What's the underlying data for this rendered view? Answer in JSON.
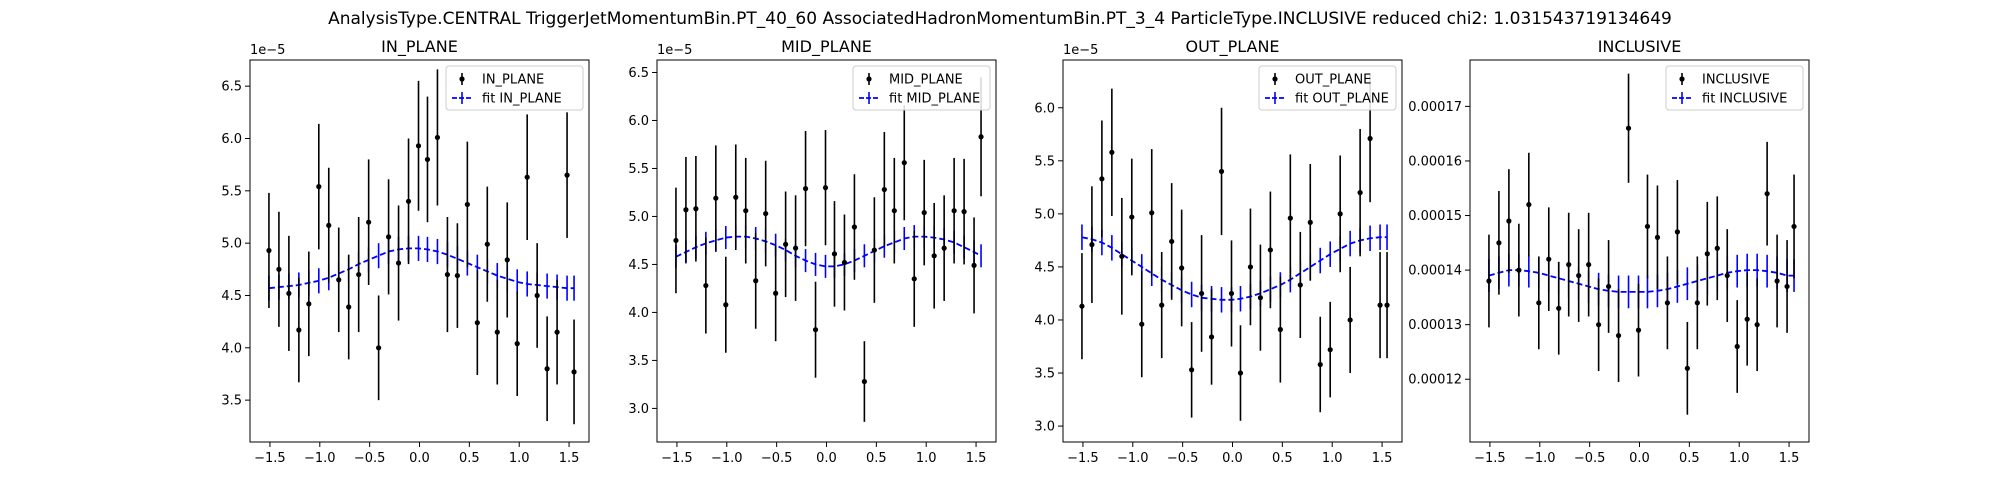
{
  "figure": {
    "suptitle": "AnalysisType.CENTRAL TriggerJetMomentumBin.PT_40_60 AssociatedHadronMomentumBin.PT_3_4 ParticleType.INCLUSIVE reduced chi2: 1.031543719134649"
  },
  "colors": {
    "data": "#000000",
    "fit": "#0000ff",
    "axes": "#000000",
    "background": "#ffffff"
  },
  "chart_data": [
    {
      "type": "scatter",
      "title": "IN_PLANE",
      "xlabel": "",
      "ylabel": "",
      "offset_text": "1e−5",
      "xlim": [
        -1.7,
        1.7
      ],
      "ylim": [
        3.1,
        6.75
      ],
      "xticks": [
        -1.5,
        -1.0,
        -0.5,
        0.0,
        0.5,
        1.0,
        1.5
      ],
      "xtick_labels": [
        "−1.5",
        "−1.0",
        "−0.5",
        "0.0",
        "0.5",
        "1.0",
        "1.5"
      ],
      "yticks": [
        3.5,
        4.0,
        4.5,
        5.0,
        5.5,
        6.0,
        6.5
      ],
      "ytick_labels": [
        "3.5",
        "4.0",
        "4.5",
        "5.0",
        "5.5",
        "6.0",
        "6.5"
      ],
      "legend": {
        "placement": "upper right",
        "entries": [
          "IN_PLANE",
          "fit IN_PLANE"
        ]
      },
      "x": [
        -1.51,
        -1.41,
        -1.31,
        -1.21,
        -1.11,
        -1.01,
        -0.91,
        -0.81,
        -0.71,
        -0.61,
        -0.51,
        -0.41,
        -0.31,
        -0.21,
        -0.11,
        -0.01,
        0.08,
        0.18,
        0.28,
        0.38,
        0.48,
        0.58,
        0.68,
        0.78,
        0.88,
        0.98,
        1.08,
        1.18,
        1.28,
        1.38,
        1.48,
        1.55
      ],
      "series": [
        {
          "name": "IN_PLANE",
          "y": [
            4.93,
            4.75,
            4.52,
            4.17,
            4.42,
            5.54,
            5.17,
            4.65,
            4.39,
            4.7,
            5.2,
            4.0,
            5.06,
            4.81,
            5.4,
            5.93,
            5.8,
            6.01,
            4.7,
            4.69,
            5.37,
            4.24,
            4.99,
            4.15,
            4.84,
            4.04,
            5.63,
            4.5,
            3.8,
            4.15,
            5.65,
            3.77
          ],
          "yerr": [
            0.55,
            0.55,
            0.55,
            0.5,
            0.5,
            0.6,
            0.55,
            0.5,
            0.5,
            0.55,
            0.6,
            0.5,
            0.55,
            0.55,
            0.6,
            0.62,
            0.6,
            0.65,
            0.55,
            0.5,
            0.6,
            0.5,
            0.55,
            0.5,
            0.55,
            0.5,
            0.6,
            0.5,
            0.5,
            0.5,
            0.6,
            0.5
          ]
        },
        {
          "name": "fit IN_PLANE",
          "y": [
            4.57,
            4.58,
            4.59,
            4.6,
            4.62,
            4.64,
            4.67,
            4.71,
            4.75,
            4.8,
            4.84,
            4.88,
            4.92,
            4.94,
            4.95,
            4.95,
            4.94,
            4.92,
            4.89,
            4.85,
            4.81,
            4.77,
            4.73,
            4.69,
            4.66,
            4.63,
            4.61,
            4.6,
            4.59,
            4.58,
            4.57,
            4.57
          ],
          "yerr": [
            0.12,
            0.12,
            0.12,
            0.12,
            0.12,
            0.12,
            0.12,
            0.12,
            0.12,
            0.12,
            0.12,
            0.12,
            0.12,
            0.12,
            0.12,
            0.12,
            0.12,
            0.12,
            0.12,
            0.12,
            0.12,
            0.12,
            0.12,
            0.12,
            0.12,
            0.12,
            0.12,
            0.12,
            0.12,
            0.12,
            0.12,
            0.12
          ]
        }
      ]
    },
    {
      "type": "scatter",
      "title": "MID_PLANE",
      "xlabel": "",
      "ylabel": "",
      "offset_text": "1e−5",
      "xlim": [
        -1.7,
        1.7
      ],
      "ylim": [
        2.65,
        6.63
      ],
      "xticks": [
        -1.5,
        -1.0,
        -0.5,
        0.0,
        0.5,
        1.0,
        1.5
      ],
      "xtick_labels": [
        "−1.5",
        "−1.0",
        "−0.5",
        "0.0",
        "0.5",
        "1.0",
        "1.5"
      ],
      "yticks": [
        3.0,
        3.5,
        4.0,
        4.5,
        5.0,
        5.5,
        6.0,
        6.5
      ],
      "ytick_labels": [
        "3.0",
        "3.5",
        "4.0",
        "4.5",
        "5.0",
        "5.5",
        "6.0",
        "6.5"
      ],
      "legend": {
        "placement": "upper right",
        "entries": [
          "MID_PLANE",
          "fit MID_PLANE"
        ]
      },
      "x": [
        -1.51,
        -1.41,
        -1.31,
        -1.21,
        -1.11,
        -1.01,
        -0.91,
        -0.81,
        -0.71,
        -0.61,
        -0.51,
        -0.41,
        -0.31,
        -0.21,
        -0.11,
        -0.01,
        0.08,
        0.18,
        0.28,
        0.38,
        0.48,
        0.58,
        0.68,
        0.78,
        0.88,
        0.98,
        1.08,
        1.18,
        1.28,
        1.38,
        1.48,
        1.55
      ],
      "series": [
        {
          "name": "MID_PLANE",
          "y": [
            4.75,
            5.07,
            5.08,
            4.28,
            5.19,
            4.08,
            5.2,
            5.06,
            4.33,
            5.03,
            4.2,
            4.71,
            4.67,
            5.29,
            3.82,
            5.3,
            4.61,
            4.52,
            4.89,
            3.28,
            4.65,
            5.28,
            5.06,
            5.56,
            4.35,
            5.04,
            4.59,
            4.67,
            5.06,
            5.05,
            4.49,
            5.83
          ],
          "yerr": [
            0.55,
            0.55,
            0.55,
            0.5,
            0.55,
            0.5,
            0.55,
            0.55,
            0.5,
            0.55,
            0.5,
            0.55,
            0.55,
            0.6,
            0.5,
            0.6,
            0.55,
            0.5,
            0.55,
            0.42,
            0.55,
            0.6,
            0.55,
            0.6,
            0.5,
            0.55,
            0.55,
            0.55,
            0.55,
            0.55,
            0.5,
            0.62
          ]
        },
        {
          "name": "fit MID_PLANE",
          "y": [
            4.58,
            4.63,
            4.68,
            4.72,
            4.75,
            4.78,
            4.79,
            4.79,
            4.77,
            4.74,
            4.7,
            4.65,
            4.59,
            4.54,
            4.5,
            4.48,
            4.48,
            4.5,
            4.54,
            4.59,
            4.64,
            4.69,
            4.73,
            4.77,
            4.79,
            4.79,
            4.78,
            4.76,
            4.73,
            4.68,
            4.63,
            4.59
          ],
          "yerr": [
            0.12,
            0.12,
            0.12,
            0.12,
            0.12,
            0.12,
            0.12,
            0.12,
            0.12,
            0.12,
            0.12,
            0.12,
            0.12,
            0.12,
            0.12,
            0.12,
            0.12,
            0.12,
            0.12,
            0.12,
            0.12,
            0.12,
            0.12,
            0.12,
            0.12,
            0.12,
            0.12,
            0.12,
            0.12,
            0.12,
            0.12,
            0.12
          ]
        }
      ]
    },
    {
      "type": "scatter",
      "title": "OUT_PLANE",
      "xlabel": "",
      "ylabel": "",
      "offset_text": "1e−5",
      "xlim": [
        -1.7,
        1.7
      ],
      "ylim": [
        2.85,
        6.45
      ],
      "xticks": [
        -1.5,
        -1.0,
        -0.5,
        0.0,
        0.5,
        1.0,
        1.5
      ],
      "xtick_labels": [
        "−1.5",
        "−1.0",
        "−0.5",
        "0.0",
        "0.5",
        "1.0",
        "1.5"
      ],
      "yticks": [
        3.0,
        3.5,
        4.0,
        4.5,
        5.0,
        5.5,
        6.0
      ],
      "ytick_labels": [
        "3.0",
        "3.5",
        "4.0",
        "4.5",
        "5.0",
        "5.5",
        "6.0"
      ],
      "legend": {
        "placement": "upper right",
        "entries": [
          "OUT_PLANE",
          "fit OUT_PLANE"
        ]
      },
      "x": [
        -1.51,
        -1.41,
        -1.31,
        -1.21,
        -1.11,
        -1.01,
        -0.91,
        -0.81,
        -0.71,
        -0.61,
        -0.51,
        -0.41,
        -0.31,
        -0.21,
        -0.11,
        -0.01,
        0.08,
        0.18,
        0.28,
        0.38,
        0.48,
        0.58,
        0.68,
        0.78,
        0.88,
        0.98,
        1.08,
        1.18,
        1.28,
        1.38,
        1.48,
        1.55
      ],
      "series": [
        {
          "name": "OUT_PLANE",
          "y": [
            4.13,
            4.71,
            5.33,
            5.58,
            4.6,
            4.97,
            3.96,
            5.01,
            4.14,
            4.74,
            4.49,
            3.53,
            4.25,
            3.84,
            5.4,
            4.25,
            3.5,
            4.5,
            4.21,
            4.66,
            3.91,
            4.96,
            4.33,
            4.92,
            3.58,
            3.72,
            5.0,
            4.0,
            5.2,
            5.71,
            4.14,
            4.14
          ],
          "yerr": [
            0.5,
            0.55,
            0.55,
            0.6,
            0.55,
            0.55,
            0.5,
            0.6,
            0.5,
            0.55,
            0.55,
            0.45,
            0.55,
            0.45,
            0.6,
            0.5,
            0.45,
            0.55,
            0.5,
            0.55,
            0.5,
            0.6,
            0.5,
            0.55,
            0.45,
            0.45,
            0.55,
            0.5,
            0.6,
            0.6,
            0.5,
            0.5
          ]
        },
        {
          "name": "fit OUT_PLANE",
          "y": [
            4.78,
            4.76,
            4.73,
            4.68,
            4.62,
            4.56,
            4.5,
            4.44,
            4.38,
            4.33,
            4.28,
            4.24,
            4.21,
            4.2,
            4.19,
            4.19,
            4.2,
            4.22,
            4.25,
            4.29,
            4.33,
            4.38,
            4.44,
            4.5,
            4.56,
            4.62,
            4.67,
            4.72,
            4.75,
            4.77,
            4.78,
            4.78
          ],
          "yerr": [
            0.12,
            0.12,
            0.12,
            0.12,
            0.12,
            0.12,
            0.12,
            0.12,
            0.12,
            0.12,
            0.12,
            0.12,
            0.12,
            0.12,
            0.12,
            0.12,
            0.12,
            0.12,
            0.12,
            0.12,
            0.12,
            0.12,
            0.12,
            0.12,
            0.12,
            0.12,
            0.12,
            0.12,
            0.12,
            0.12,
            0.12,
            0.12
          ]
        }
      ]
    },
    {
      "type": "scatter",
      "title": "INCLUSIVE",
      "xlabel": "",
      "ylabel": "",
      "offset_text": "",
      "xlim": [
        -1.7,
        1.7
      ],
      "ylim": [
        0.0001085,
        0.0001785
      ],
      "xticks": [
        -1.5,
        -1.0,
        -0.5,
        0.0,
        0.5,
        1.0,
        1.5
      ],
      "xtick_labels": [
        "−1.5",
        "−1.0",
        "−0.5",
        "0.0",
        "0.5",
        "1.0",
        "1.5"
      ],
      "yticks": [
        0.00012,
        0.00013,
        0.00014,
        0.00015,
        0.00016,
        0.00017
      ],
      "ytick_labels": [
        "0.00012",
        "0.00013",
        "0.00014",
        "0.00015",
        "0.00016",
        "0.00017"
      ],
      "legend": {
        "placement": "upper right",
        "entries": [
          "INCLUSIVE",
          "fit INCLUSIVE"
        ]
      },
      "x": [
        -1.51,
        -1.41,
        -1.31,
        -1.21,
        -1.11,
        -1.01,
        -0.91,
        -0.81,
        -0.71,
        -0.61,
        -0.51,
        -0.41,
        -0.31,
        -0.21,
        -0.11,
        -0.01,
        0.08,
        0.18,
        0.28,
        0.38,
        0.48,
        0.58,
        0.68,
        0.78,
        0.88,
        0.98,
        1.08,
        1.18,
        1.28,
        1.38,
        1.48,
        1.55
      ],
      "series": [
        {
          "name": "INCLUSIVE",
          "y": [
            0.000138,
            0.000145,
            0.000149,
            0.00014,
            0.000152,
            0.000134,
            0.000142,
            0.000133,
            0.000141,
            0.000139,
            0.000141,
            0.00013,
            0.000137,
            0.000128,
            0.000166,
            0.000129,
            0.000148,
            0.000146,
            0.000134,
            0.000147,
            0.000122,
            0.000134,
            0.000143,
            0.000144,
            0.000139,
            0.000126,
            0.000131,
            0.00013,
            0.000154,
            0.000138,
            0.000137,
            0.000148
          ],
          "yerr": [
            8.5e-06,
            9.5e-06,
            9.5e-06,
            8.5e-06,
            9.5e-06,
            8.5e-06,
            9.5e-06,
            8.5e-06,
            9.5e-06,
            8.5e-06,
            9.5e-06,
            8.5e-06,
            8.5e-06,
            8.5e-06,
            1e-05,
            8.5e-06,
            9.5e-06,
            9.5e-06,
            8.5e-06,
            9.5e-06,
            8.5e-06,
            8.5e-06,
            9.5e-06,
            9.5e-06,
            8.5e-06,
            8.5e-06,
            8.5e-06,
            8.5e-06,
            9.5e-06,
            8.5e-06,
            8.5e-06,
            9.5e-06
          ]
        },
        {
          "name": "fit INCLUSIVE",
          "y": [
            0.000139,
            0.0001395,
            0.00014,
            0.00014,
            0.0001398,
            0.0001395,
            0.000139,
            0.0001385,
            0.000138,
            0.0001375,
            0.000137,
            0.0001365,
            0.0001362,
            0.000136,
            0.000136,
            0.000136,
            0.000136,
            0.0001362,
            0.0001365,
            0.000137,
            0.0001375,
            0.000138,
            0.0001385,
            0.000139,
            0.0001395,
            0.0001398,
            0.00014,
            0.00014,
            0.0001398,
            0.0001395,
            0.000139,
            0.000139
          ],
          "yerr": [
            3e-06,
            3e-06,
            3e-06,
            3e-06,
            3e-06,
            3e-06,
            3e-06,
            3e-06,
            3e-06,
            3e-06,
            3e-06,
            3e-06,
            3e-06,
            3e-06,
            3e-06,
            3e-06,
            3e-06,
            3e-06,
            3e-06,
            3e-06,
            3e-06,
            3e-06,
            3e-06,
            3e-06,
            3e-06,
            3e-06,
            3e-06,
            3e-06,
            3e-06,
            3e-06,
            3e-06,
            3e-06
          ]
        }
      ]
    }
  ]
}
